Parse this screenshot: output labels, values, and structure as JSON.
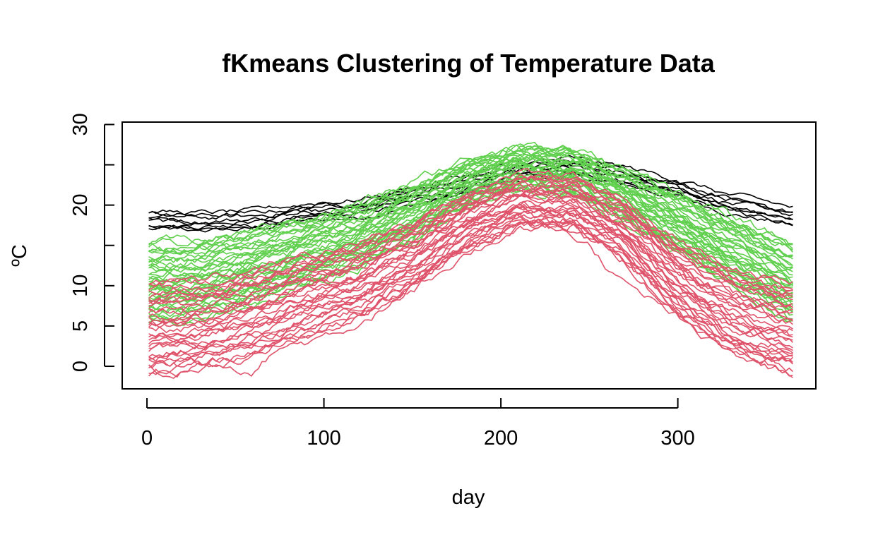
{
  "chart_data": {
    "type": "line",
    "title": "fKmeans Clustering of Temperature Data",
    "xlabel": "day",
    "ylabel": "ºC",
    "xlim": [
      -14,
      378
    ],
    "ylim": [
      -2.8,
      30.3
    ],
    "x_ticks": [
      "0",
      "100",
      "200",
      "300"
    ],
    "x_tick_values": [
      0,
      100,
      200,
      300
    ],
    "y_ticks": [
      "0",
      "5",
      "10",
      "20",
      "30"
    ],
    "y_tick_values": [
      0,
      5,
      10,
      20,
      30
    ],
    "y_minor_ticks": [
      0,
      5,
      10,
      15,
      20,
      25,
      30
    ],
    "grid": false,
    "x_range": [
      1,
      365
    ],
    "clusters": [
      {
        "color": "#000000",
        "curves_shown": 8,
        "representative": {
          "x": [
            1,
            30,
            60,
            90,
            120,
            150,
            180,
            210,
            240,
            270,
            300,
            330,
            365
          ],
          "y": [
            18,
            17.8,
            18,
            19,
            19.5,
            21,
            22.5,
            24,
            24.5,
            23.5,
            22,
            20,
            18.5
          ]
        },
        "spread": [
          -1.0,
          1.2
        ]
      },
      {
        "color": "#61D04F",
        "curves_shown": 40,
        "representative": {
          "x": [
            1,
            30,
            60,
            90,
            120,
            150,
            180,
            210,
            240,
            270,
            300,
            330,
            365
          ],
          "y": [
            10,
            10.5,
            12,
            14,
            16,
            19,
            22.5,
            24.5,
            24,
            21,
            17.5,
            14,
            10
          ]
        },
        "spread": [
          -4.0,
          4.5
        ]
      },
      {
        "color": "#DF536B",
        "curves_shown": 32,
        "representative": {
          "x": [
            1,
            30,
            60,
            90,
            120,
            150,
            180,
            210,
            240,
            270,
            300,
            330,
            365
          ],
          "y": [
            5,
            5.5,
            7,
            9,
            11,
            14,
            18,
            20.5,
            20.5,
            17,
            11,
            7,
            5
          ]
        },
        "spread": [
          -4.5,
          4.0
        ]
      },
      {
        "color": "#DF536B",
        "curves_shown": 1,
        "representative": {
          "x": [
            1,
            15,
            30,
            45,
            60,
            75,
            90,
            120,
            150,
            180,
            200,
            215,
            230,
            250,
            270,
            300,
            320,
            345,
            365
          ],
          "y": [
            0.2,
            -1.5,
            0.5,
            0.5,
            -0.3,
            2.5,
            3,
            5.5,
            9.5,
            15,
            18.5,
            19,
            17.5,
            15,
            10,
            6,
            4,
            0.5,
            1
          ]
        },
        "spread": [
          0,
          0
        ]
      }
    ]
  }
}
